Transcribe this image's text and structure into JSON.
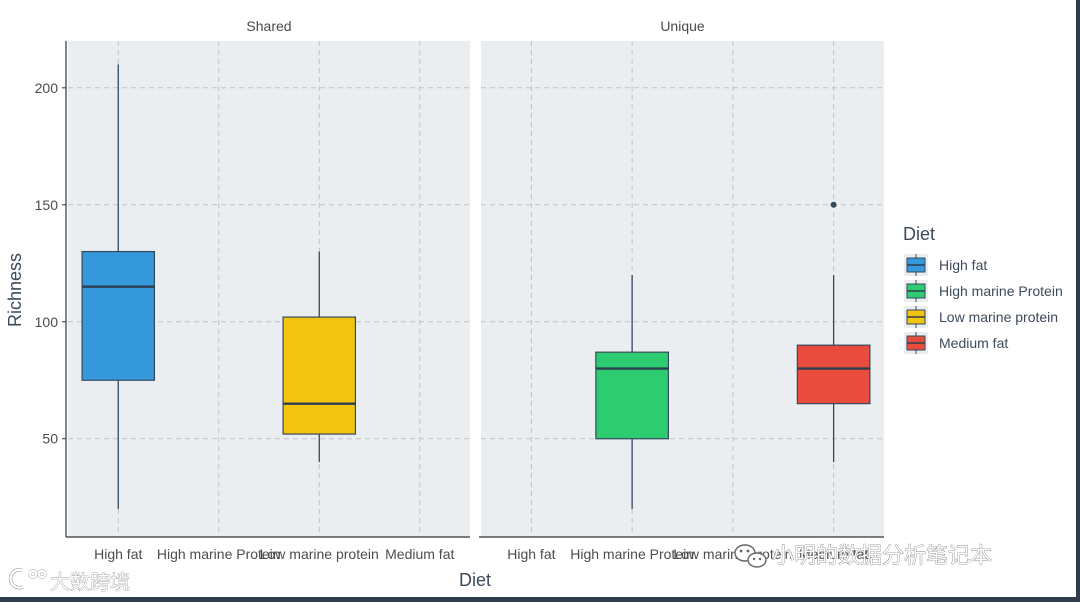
{
  "chart_data": {
    "type": "box",
    "facets": [
      {
        "strip": "Shared",
        "boxes": [
          {
            "category": "High fat",
            "min": 20,
            "q1": 75,
            "median": 115,
            "q3": 130,
            "max": 210,
            "outliers": []
          },
          {
            "category": "Low marine protein",
            "min": 40,
            "q1": 52,
            "median": 65,
            "q3": 102,
            "max": 130,
            "outliers": []
          }
        ]
      },
      {
        "strip": "Unique",
        "boxes": [
          {
            "category": "High marine Protein",
            "min": 20,
            "q1": 50,
            "median": 80,
            "q3": 87,
            "max": 120,
            "outliers": []
          },
          {
            "category": "Medium fat",
            "min": 40,
            "q1": 65,
            "median": 80,
            "q3": 90,
            "max": 120,
            "outliers": [
              150
            ]
          }
        ]
      }
    ],
    "categories": [
      "High fat",
      "High marine Protein",
      "Low marine protein",
      "Medium fat"
    ],
    "category_labels": [
      "High fat",
      "High marine Protein",
      "Low marine protein",
      "Medium fat"
    ],
    "y_ticks": [
      50,
      100,
      150,
      200
    ],
    "ylim": [
      8,
      220
    ],
    "xlabel": "Diet",
    "ylabel": "Richness",
    "grid": true,
    "legend": {
      "title": "Diet",
      "position": "right",
      "entries": [
        {
          "label": "High fat",
          "color": "#3498db"
        },
        {
          "label": "High marine Protein",
          "color": "#2ecc71"
        },
        {
          "label": "Low marine protein",
          "color": "#f1c40f"
        },
        {
          "label": "Medium fat",
          "color": "#e74c3c"
        }
      ]
    }
  },
  "watermarks": {
    "left": "大数跨境",
    "right": "小明的数据分析笔记本"
  }
}
